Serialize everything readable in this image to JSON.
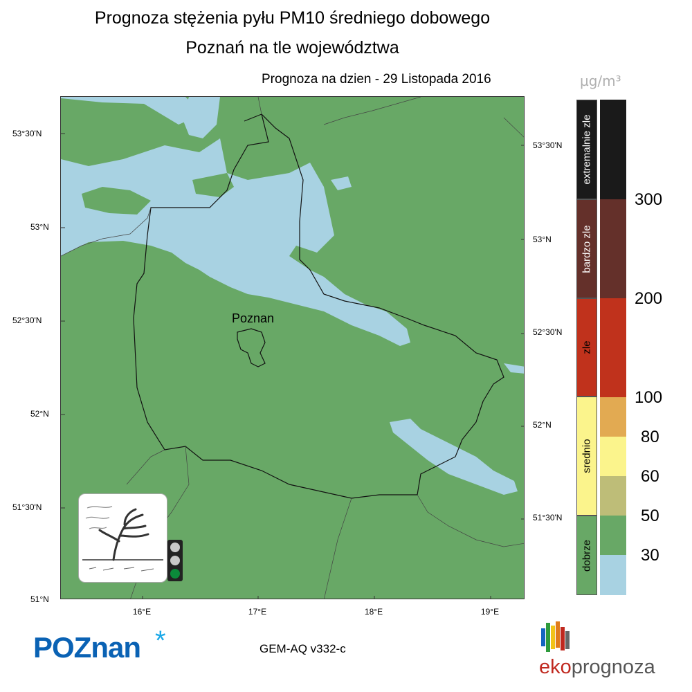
{
  "title_line1": "Prognoza stężenia pyłu PM10 średniego dobowego",
  "title_line2": "Poznań na tle województwa",
  "forecast_date": "Prognoza na dzien -  29 Listopada 2016",
  "city_label": "Poznan",
  "lat_labels_left": [
    "53°30'N",
    "53°N",
    "52°30'N",
    "52°N",
    "51°30'N",
    "51°N"
  ],
  "lat_labels_right": [
    "53°30'N",
    "53°N",
    "52°30'N",
    "52°N",
    "51°30'N"
  ],
  "lon_labels": [
    "16°E",
    "17°E",
    "18°E",
    "19°E"
  ],
  "unit": "µg/m³",
  "categories": [
    {
      "label": "extremalnie zle",
      "color": "#1a1a1a"
    },
    {
      "label": "bardzo zle",
      "color": "#64302a"
    },
    {
      "label": "zle",
      "color": "#c0321c"
    },
    {
      "label": "srednio",
      "color": "#fbf48c"
    },
    {
      "label": "dobrze",
      "color": "#68a866"
    }
  ],
  "scale_colors": [
    "#1a1a1a",
    "#64302a",
    "#c0321c",
    "#e2aa52",
    "#fbf48c",
    "#bebd78",
    "#68a866",
    "#a8d2e2"
  ],
  "scale_ticks": [
    "300",
    "200",
    "100",
    "80",
    "60",
    "50",
    "30"
  ],
  "model": "GEM-AQ v332-c",
  "logo_poznan": "POZnan",
  "logo_eko_1": "eko",
  "logo_eko_2": "prognoza",
  "traffic_light_active": "green",
  "map_colors": {
    "good": "#68a866",
    "very_good": "#a8d2e2"
  }
}
